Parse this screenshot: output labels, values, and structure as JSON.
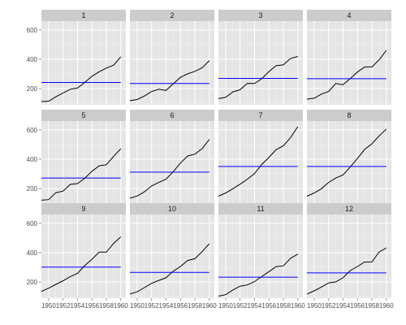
{
  "chart_data": {
    "type": "line",
    "facet_layout": "4 columns x 3 rows",
    "grid": true,
    "x_ticks": [
      1950,
      1952,
      1954,
      1956,
      1958,
      1960
    ],
    "xlim": [
      1949,
      1960.7
    ],
    "y_ticks": [
      200,
      400,
      600
    ],
    "ylim": [
      90,
      660
    ],
    "colors": {
      "series": "#000000",
      "mean_line": "#0000ff",
      "panel": "#e5e5e5",
      "grid": "#ffffff",
      "strip": "#cccccc"
    },
    "x": [
      1949,
      1950,
      1951,
      1952,
      1953,
      1954,
      1955,
      1956,
      1957,
      1958,
      1959,
      1960
    ],
    "panels": [
      {
        "label": "1",
        "values": [
          112,
          115,
          145,
          171,
          196,
          204,
          242,
          284,
          315,
          340,
          360,
          417
        ],
        "mean": 242
      },
      {
        "label": "2",
        "values": [
          118,
          126,
          150,
          180,
          196,
          188,
          233,
          277,
          301,
          318,
          342,
          391
        ],
        "mean": 235
      },
      {
        "label": "3",
        "values": [
          132,
          141,
          178,
          193,
          236,
          235,
          267,
          317,
          356,
          362,
          406,
          419
        ],
        "mean": 270
      },
      {
        "label": "4",
        "values": [
          129,
          135,
          163,
          181,
          235,
          227,
          269,
          313,
          348,
          348,
          396,
          461
        ],
        "mean": 268
      },
      {
        "label": "5",
        "values": [
          121,
          125,
          172,
          183,
          229,
          234,
          270,
          318,
          355,
          363,
          420,
          472
        ],
        "mean": 272
      },
      {
        "label": "6",
        "values": [
          135,
          149,
          178,
          218,
          243,
          264,
          315,
          374,
          422,
          435,
          472,
          535
        ],
        "mean": 312
      },
      {
        "label": "7",
        "values": [
          148,
          170,
          199,
          230,
          264,
          302,
          364,
          413,
          465,
          491,
          548,
          622
        ],
        "mean": 351
      },
      {
        "label": "8",
        "values": [
          148,
          170,
          199,
          242,
          272,
          293,
          347,
          405,
          467,
          505,
          559,
          606
        ],
        "mean": 351
      },
      {
        "label": "9",
        "values": [
          136,
          158,
          184,
          209,
          237,
          259,
          312,
          355,
          404,
          404,
          463,
          508
        ],
        "mean": 302
      },
      {
        "label": "10",
        "values": [
          119,
          133,
          162,
          191,
          211,
          229,
          274,
          306,
          347,
          359,
          407,
          461
        ],
        "mean": 266
      },
      {
        "label": "11",
        "values": [
          104,
          114,
          146,
          172,
          180,
          203,
          237,
          271,
          305,
          310,
          362,
          390
        ],
        "mean": 233
      },
      {
        "label": "12",
        "values": [
          118,
          140,
          166,
          194,
          201,
          229,
          278,
          306,
          336,
          337,
          405,
          432
        ],
        "mean": 262
      }
    ]
  }
}
